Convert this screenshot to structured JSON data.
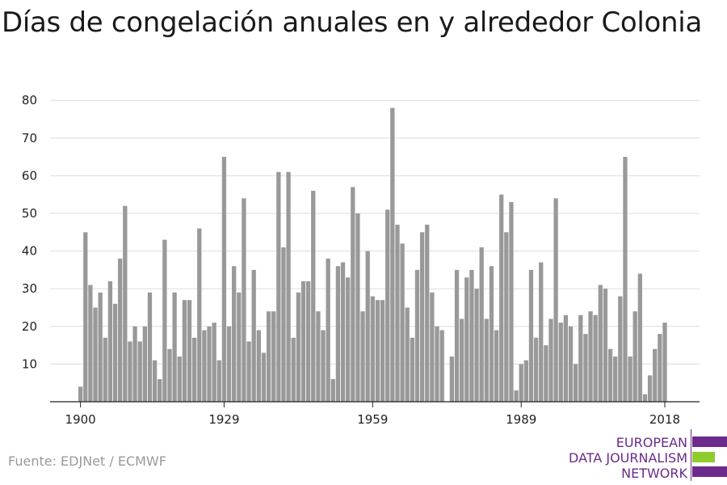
{
  "title": "Días de congelación anuales en y alrededor Colonia",
  "source": "Fuente: EDJNet / ECMWF",
  "logo": {
    "line1": "EUROPEAN",
    "line2": "DATA JOURNALISM",
    "line3": "NETWORK",
    "colors": {
      "purple": "#6b2a8c",
      "green": "#8fcc2e"
    }
  },
  "colors": {
    "bar": "#999999",
    "grid": "#dddddd",
    "axis": "#222222",
    "text": "#222222"
  },
  "chart_data": {
    "type": "bar",
    "title": "Días de congelación anuales en y alrededor Colonia",
    "xlabel": "",
    "ylabel": "",
    "ylim": [
      0,
      80
    ],
    "yticks": [
      10,
      20,
      30,
      40,
      50,
      60,
      70,
      80
    ],
    "xticks": [
      1900,
      1929,
      1959,
      1989,
      2018
    ],
    "grid": true,
    "x": [
      1900,
      1901,
      1902,
      1903,
      1904,
      1905,
      1906,
      1907,
      1908,
      1909,
      1910,
      1911,
      1912,
      1913,
      1914,
      1915,
      1916,
      1917,
      1918,
      1919,
      1920,
      1921,
      1922,
      1923,
      1924,
      1925,
      1926,
      1927,
      1928,
      1929,
      1930,
      1931,
      1932,
      1933,
      1934,
      1935,
      1936,
      1937,
      1938,
      1939,
      1940,
      1941,
      1942,
      1943,
      1944,
      1945,
      1946,
      1947,
      1948,
      1949,
      1950,
      1951,
      1952,
      1953,
      1954,
      1955,
      1956,
      1957,
      1958,
      1959,
      1960,
      1961,
      1962,
      1963,
      1964,
      1965,
      1966,
      1967,
      1968,
      1969,
      1970,
      1971,
      1972,
      1973,
      1974,
      1975,
      1976,
      1977,
      1978,
      1979,
      1980,
      1981,
      1982,
      1983,
      1984,
      1985,
      1986,
      1987,
      1988,
      1989,
      1990,
      1991,
      1992,
      1993,
      1994,
      1995,
      1996,
      1997,
      1998,
      1999,
      2000,
      2001,
      2002,
      2003,
      2004,
      2005,
      2006,
      2007,
      2008,
      2009,
      2010,
      2011,
      2012,
      2013,
      2014,
      2015,
      2016,
      2017,
      2018
    ],
    "values": [
      4,
      45,
      31,
      25,
      29,
      17,
      32,
      26,
      38,
      52,
      16,
      20,
      16,
      20,
      29,
      11,
      6,
      43,
      14,
      29,
      12,
      27,
      27,
      17,
      46,
      19,
      20,
      21,
      11,
      65,
      20,
      36,
      29,
      54,
      16,
      35,
      19,
      13,
      24,
      24,
      61,
      41,
      61,
      17,
      29,
      32,
      32,
      56,
      24,
      19,
      38,
      6,
      36,
      37,
      33,
      57,
      50,
      24,
      40,
      28,
      27,
      27,
      51,
      78,
      47,
      42,
      25,
      17,
      35,
      45,
      47,
      29,
      20,
      19,
      0,
      12,
      35,
      22,
      33,
      35,
      30,
      41,
      22,
      36,
      19,
      55,
      45,
      53,
      3,
      10,
      11,
      35,
      17,
      37,
      15,
      22,
      54,
      21,
      23,
      20,
      10,
      23,
      18,
      24,
      23,
      31,
      30,
      14,
      12,
      28,
      65,
      12,
      24,
      34,
      2,
      7,
      14,
      18,
      21
    ]
  }
}
